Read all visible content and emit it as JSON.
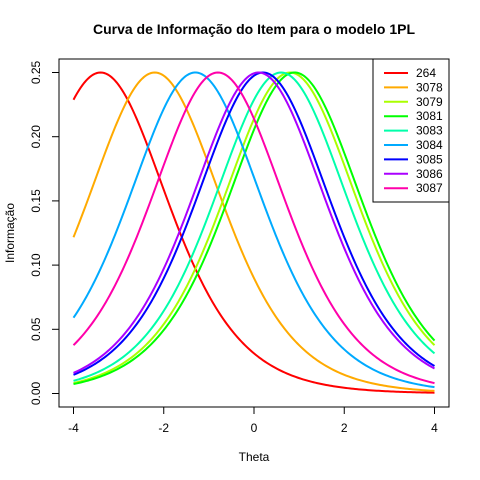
{
  "chart_data": {
    "type": "line",
    "title": "Curva de Informação do Item para o modelo 1PL",
    "xlabel": "Theta",
    "ylabel": "Informação",
    "xlim": [
      -4,
      4
    ],
    "ylim": [
      0,
      0.25
    ],
    "x_ticks": [
      -4,
      -2,
      0,
      2,
      4
    ],
    "y_ticks": [
      0.0,
      0.05,
      0.1,
      0.15,
      0.2,
      0.25
    ],
    "y_tick_labels": [
      "0.00",
      "0.05",
      "0.10",
      "0.15",
      "0.20",
      "0.25"
    ],
    "grid": false,
    "legend_position": "top-right",
    "series": [
      {
        "name": "264",
        "color": "#FF0000",
        "difficulty": -3.4
      },
      {
        "name": "3078",
        "color": "#FFAA00",
        "difficulty": -2.2
      },
      {
        "name": "3079",
        "color": "#AAFF00",
        "difficulty": 0.8
      },
      {
        "name": "3081",
        "color": "#00FF00",
        "difficulty": 0.9
      },
      {
        "name": "3083",
        "color": "#00FFAA",
        "difficulty": 0.6
      },
      {
        "name": "3084",
        "color": "#00AAFF",
        "difficulty": -1.3
      },
      {
        "name": "3085",
        "color": "#0000FF",
        "difficulty": 0.2
      },
      {
        "name": "3086",
        "color": "#AA00FF",
        "difficulty": 0.1
      },
      {
        "name": "3087",
        "color": "#FF00AA",
        "difficulty": -0.8
      }
    ]
  }
}
